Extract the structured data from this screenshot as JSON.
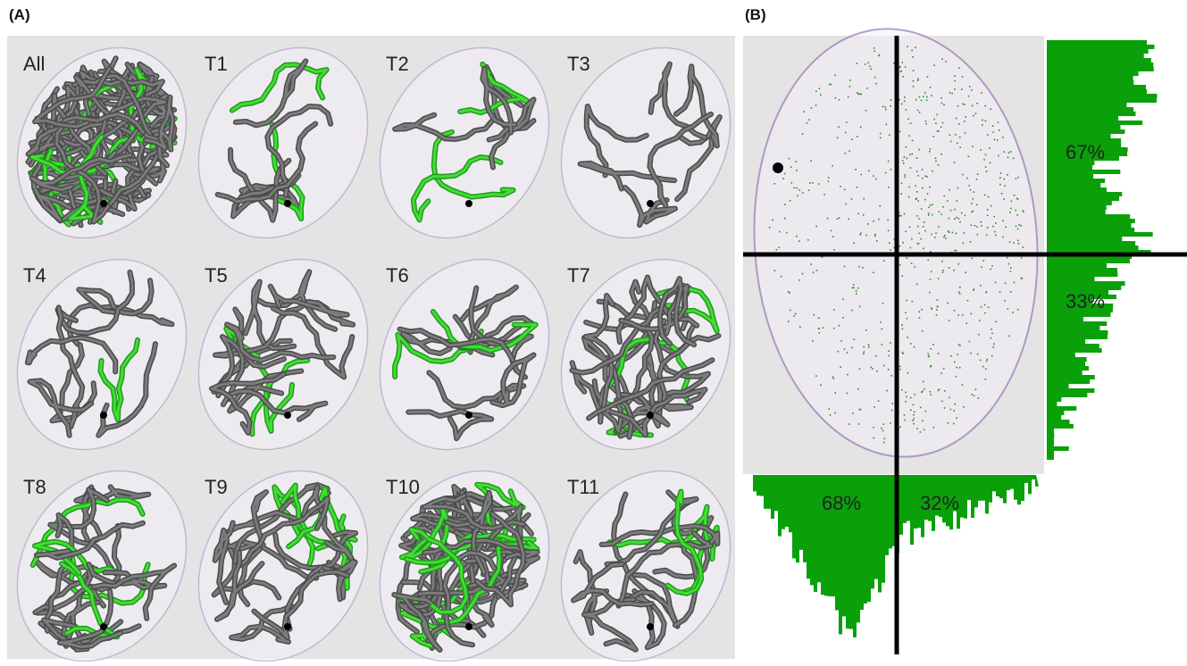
{
  "panel_a": {
    "label": "(A)",
    "tiles": [
      "All",
      "T1",
      "T2",
      "T3",
      "T4",
      "T5",
      "T6",
      "T7",
      "T8",
      "T9",
      "T10",
      "T11"
    ]
  },
  "panel_b": {
    "label": "(B)",
    "right_upper": "67%",
    "right_lower": "33%",
    "bottom_left": "68%",
    "bottom_right": "32%"
  }
}
